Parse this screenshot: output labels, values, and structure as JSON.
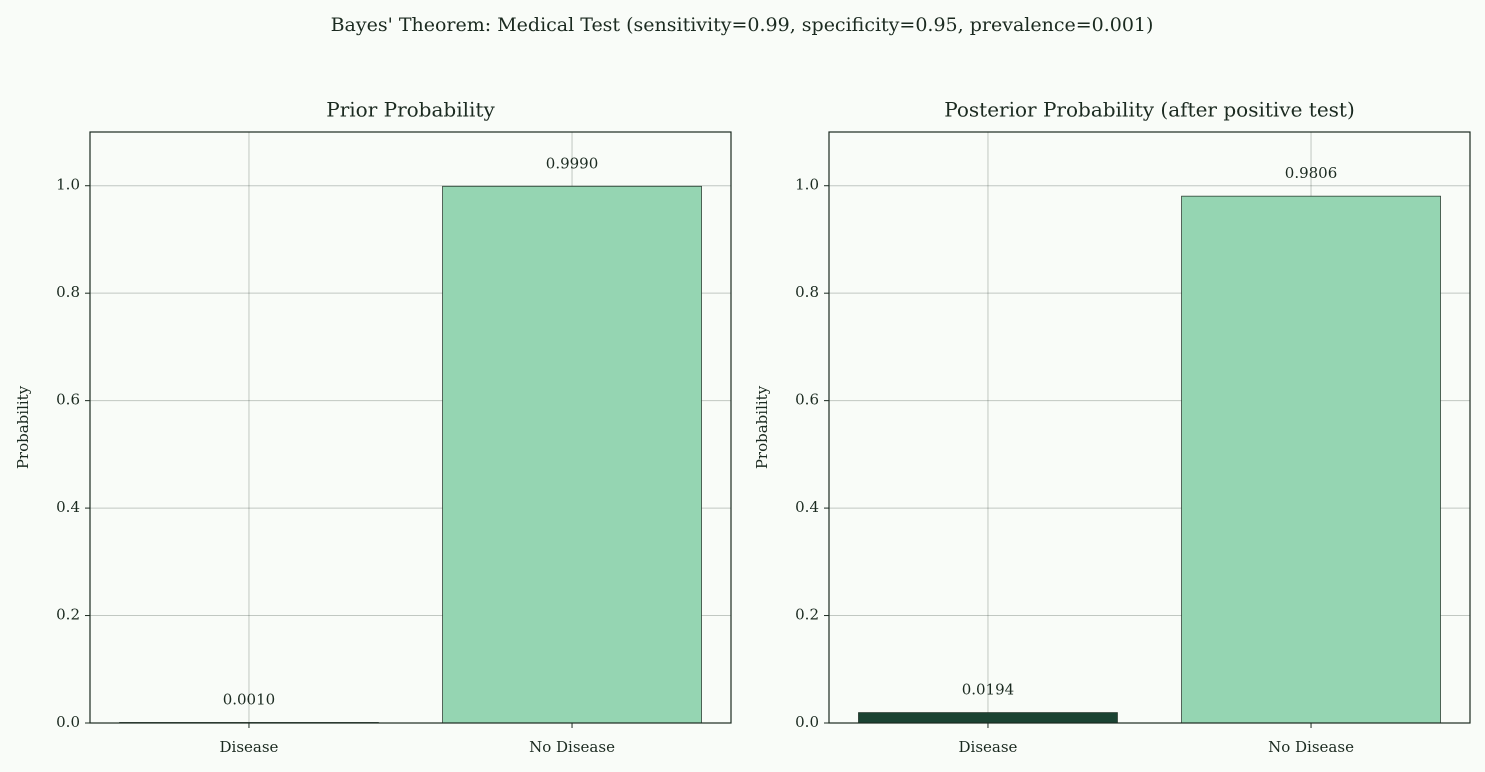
{
  "title": "Bayes' Theorem: Medical Test (sensitivity=0.99, specificity=0.95, prevalence=0.001)",
  "chart_data": [
    {
      "type": "bar",
      "title": "Prior Probability",
      "y_label": "Probability",
      "categories": [
        "Disease",
        "No Disease"
      ],
      "values": [
        0.001,
        0.999
      ],
      "value_labels": [
        "0.0010",
        "0.9990"
      ],
      "colors": [
        "#1b4332",
        "#95d5b2"
      ],
      "ylim": [
        0,
        1.1
      ],
      "yticks": [
        {
          "value": 0,
          "label": "0.0"
        },
        0.2,
        0.4,
        0.6,
        0.8,
        {
          "value": 1,
          "label": "1.0"
        }
      ],
      "grid": true
    },
    {
      "type": "bar",
      "title": "Posterior Probability (after positive test)",
      "y_label": "Probability",
      "categories": [
        "Disease",
        "No Disease"
      ],
      "values": [
        0.0194,
        0.9806
      ],
      "colors": [
        "#1b4332",
        "#95d5b2"
      ],
      "ylim": [
        0,
        1.1
      ],
      "yticks": [
        {
          "value": 0,
          "label": "0.0"
        },
        0.2,
        0.4,
        0.6,
        0.8,
        {
          "value": 1,
          "label": "1.0"
        }
      ],
      "grid": true
    }
  ]
}
